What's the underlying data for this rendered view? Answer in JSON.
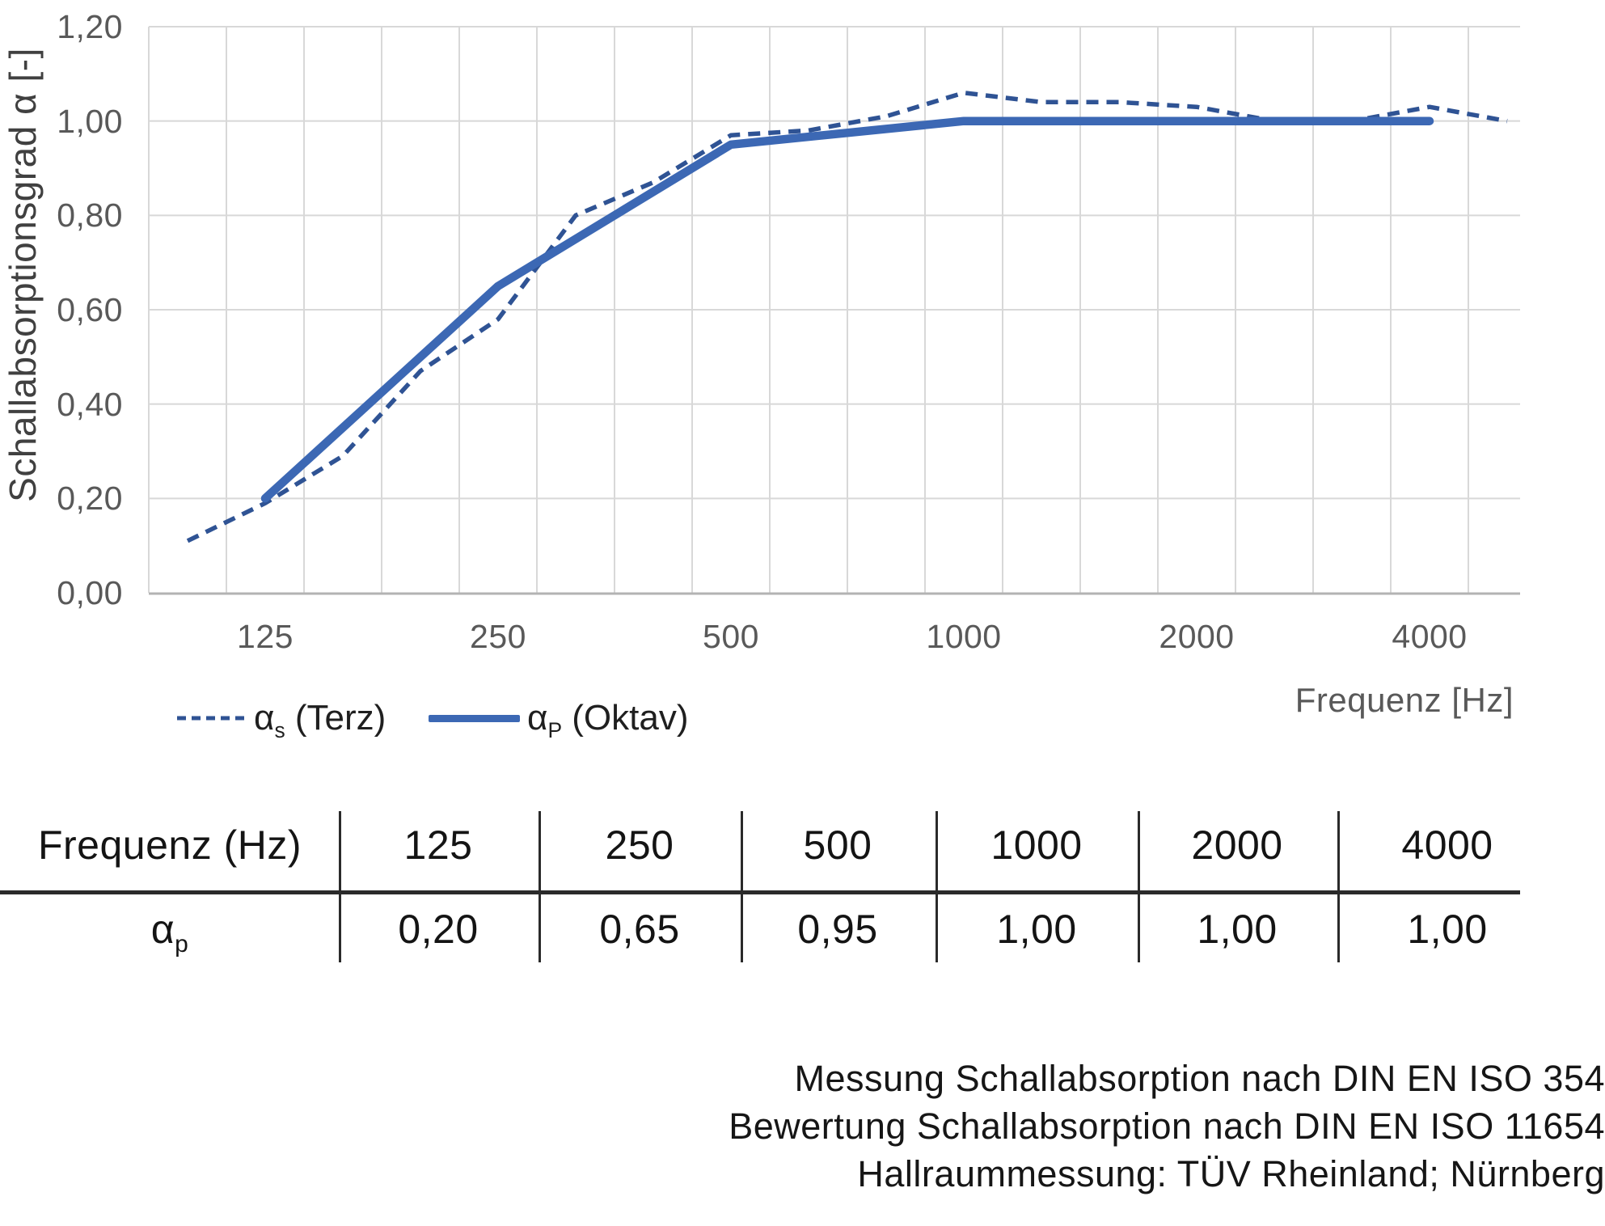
{
  "chart": {
    "y_axis_title": "Schallabsorptionsgrad α [-]",
    "x_axis_label": "Frequenz [Hz]",
    "y_ticks": [
      "1,20",
      "1,00",
      "0,80",
      "0,60",
      "0,40",
      "0,20",
      "0,00"
    ],
    "x_ticks": [
      "125",
      "250",
      "500",
      "1000",
      "2000",
      "4000"
    ],
    "legend": [
      {
        "base": "α",
        "sub": "s",
        "rest": " (Terz)"
      },
      {
        "base": "α",
        "sub": "P",
        "rest": " (Oktav)"
      }
    ]
  },
  "chart_data": {
    "type": "line",
    "title": "",
    "xlabel": "Frequenz [Hz]",
    "ylabel": "Schallabsorptionsgrad α [-]",
    "ylim": [
      0,
      1.2
    ],
    "x_scale": "log-third-octave-bands",
    "grid": true,
    "legend_position": "bottom-left",
    "series": [
      {
        "name": "αs (Terz)",
        "style": "dashed",
        "x": [
          100,
          125,
          160,
          200,
          250,
          315,
          400,
          500,
          630,
          800,
          1000,
          1250,
          1600,
          2000,
          2500,
          3150,
          4000,
          5000
        ],
        "y": [
          0.11,
          0.19,
          0.29,
          0.47,
          0.58,
          0.8,
          0.87,
          0.97,
          0.98,
          1.01,
          1.06,
          1.04,
          1.04,
          1.03,
          1.0,
          1.0,
          1.03,
          1.0
        ]
      },
      {
        "name": "αP (Oktav)",
        "style": "solid",
        "x": [
          125,
          250,
          500,
          1000,
          2000,
          4000
        ],
        "y": [
          0.2,
          0.65,
          0.95,
          1.0,
          1.0,
          1.0
        ]
      }
    ]
  },
  "table": {
    "header": [
      "Frequenz (Hz)",
      "125",
      "250",
      "500",
      "1000",
      "2000",
      "4000"
    ],
    "row_label": {
      "base": "α",
      "sub": "p"
    },
    "values": [
      "0,20",
      "0,65",
      "0,95",
      "1,00",
      "1,00",
      "1,00"
    ]
  },
  "footer": {
    "lines": [
      "Messung Schallabsorption nach DIN EN ISO 354",
      "Bewertung Schallabsorption nach DIN EN ISO 11654",
      "Hallraummessung: TÜV Rheinland; Nürnberg"
    ]
  },
  "colors": {
    "solid_line": "#3C68B4",
    "dashed_line": "#2F5394",
    "grid": "#D8D8D8",
    "axis_line": "#B3B3B3",
    "tick_text": "#595959",
    "axis_title_text": "#404040",
    "table_line": "#2A2A2A",
    "text_dark": "#161616"
  }
}
